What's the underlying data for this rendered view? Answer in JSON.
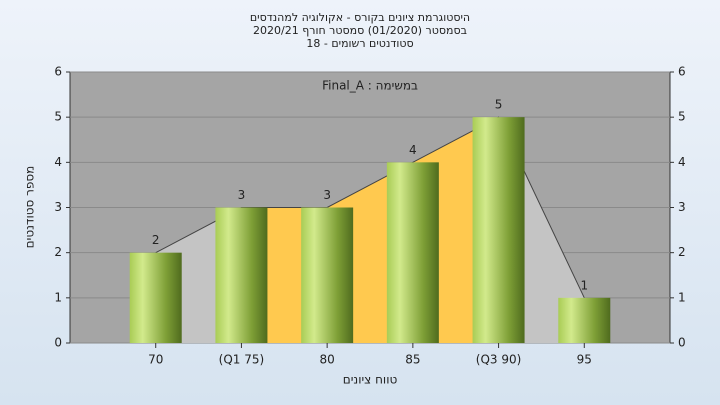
{
  "chart_data": {
    "type": "bar",
    "title": [
      "היסטוגרמת ציונים בקורס - אקולוגיה למהנדסים",
      "בסמסטר  (01/2020)  סמסטר חורף  2020/21",
      "סטודנטים רשומים - 18"
    ],
    "annotation": "במשימה : Final_A",
    "categories": [
      "70",
      "(Q1 75)",
      "80",
      "85",
      "(Q3 90)",
      "95"
    ],
    "series": [
      {
        "name": "מספר סטודנטים",
        "color": "#8fb33f",
        "values": [
          2,
          3,
          3,
          4,
          5,
          1
        ]
      }
    ],
    "x_label": "טווח ציונים",
    "y_label": "מספר סטודנטים",
    "ylim": [
      0,
      6
    ],
    "yticks": [
      0,
      1,
      2,
      3,
      4,
      5,
      6
    ],
    "y2lim": [
      0,
      6
    ],
    "y2ticks": [
      0,
      1,
      2,
      3,
      4,
      5,
      6
    ],
    "grid": true
  }
}
